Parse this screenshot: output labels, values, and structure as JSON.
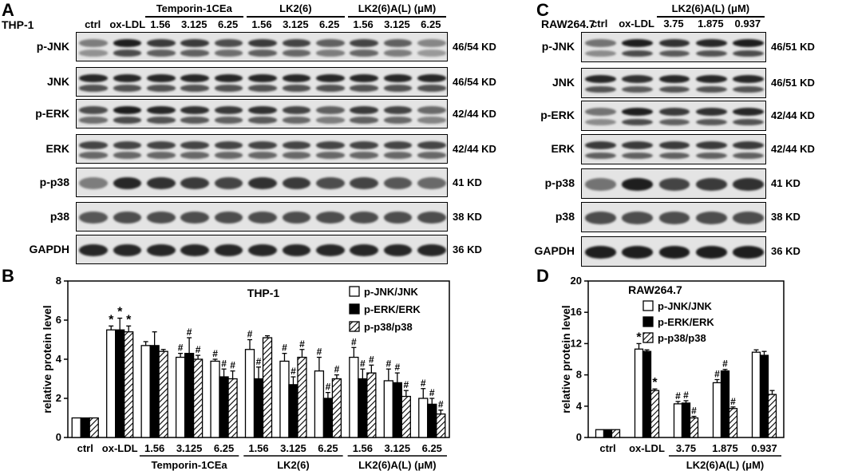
{
  "panels": {
    "A": "A",
    "B": "B",
    "C": "C",
    "D": "D"
  },
  "panelA": {
    "cell_line": "THP-1",
    "lane_headers": [
      "ctrl",
      "ox-LDL",
      "1.56",
      "3.125",
      "6.25",
      "1.56",
      "3.125",
      "6.25",
      "1.56",
      "3.125",
      "6.25"
    ],
    "groups": [
      "Temporin-1CEa",
      "LK2(6)",
      "LK2(6)A(L) (μM)"
    ],
    "rows": [
      {
        "name": "p-JNK",
        "kd": "46/54 KD"
      },
      {
        "name": "JNK",
        "kd": "46/54 KD"
      },
      {
        "name": "p-ERK",
        "kd": "42/44 KD"
      },
      {
        "name": "ERK",
        "kd": "42/44 KD"
      },
      {
        "name": "p-p38",
        "kd": "41 KD"
      },
      {
        "name": "p38",
        "kd": "38 KD"
      },
      {
        "name": "GAPDH",
        "kd": "36 KD"
      }
    ]
  },
  "panelC": {
    "cell_line": "RAW264.7",
    "lane_headers": [
      "ctrl",
      "ox-LDL",
      "3.75",
      "1.875",
      "0.937"
    ],
    "group": "LK2(6)A(L) (μM)",
    "rows": [
      {
        "name": "p-JNK",
        "kd": "46/51 KD"
      },
      {
        "name": "JNK",
        "kd": "46/51 KD"
      },
      {
        "name": "p-ERK",
        "kd": "42/44 KD"
      },
      {
        "name": "ERK",
        "kd": "42/44 KD"
      },
      {
        "name": "p-p38",
        "kd": "41 KD"
      },
      {
        "name": "p38",
        "kd": "38 KD"
      },
      {
        "name": "GAPDH",
        "kd": "36 KD"
      }
    ]
  },
  "chart_data": [
    {
      "type": "bar",
      "title": "THP-1",
      "ylabel": "relative protein level",
      "ylim": [
        0,
        8
      ],
      "yticks": [
        "0",
        "2",
        "4",
        "6",
        "8"
      ],
      "categories": [
        "ctrl",
        "ox-LDL",
        "1.56",
        "3.125",
        "6.25",
        "1.56",
        "3.125",
        "6.25",
        "1.56",
        "3.125",
        "6.25"
      ],
      "groups": [
        {
          "label": "Temporin-1CEa",
          "from": 2,
          "to": 4
        },
        {
          "label": "LK2(6)",
          "from": 5,
          "to": 7
        },
        {
          "label": "LK2(6)A(L) (μM)",
          "from": 8,
          "to": 10
        }
      ],
      "series": [
        {
          "name": "p-JNK/JNK",
          "fill": "white",
          "values": [
            1.0,
            5.5,
            4.7,
            4.1,
            3.9,
            4.5,
            3.9,
            3.4,
            4.1,
            2.9,
            2.0
          ],
          "errors": [
            0,
            0.2,
            0.2,
            0.2,
            0.1,
            0.5,
            0.4,
            0.7,
            0.5,
            0.6,
            0.5
          ],
          "marks": [
            "",
            "*",
            "",
            "#",
            "#",
            "#",
            "#",
            "#",
            "#",
            "#",
            "#"
          ]
        },
        {
          "name": "p-ERK/ERK",
          "fill": "black",
          "values": [
            1.0,
            5.5,
            4.7,
            4.3,
            3.1,
            3.0,
            2.7,
            2.0,
            3.0,
            2.8,
            1.7
          ],
          "errors": [
            0,
            0.6,
            0.7,
            0.8,
            0.4,
            0.6,
            0.4,
            0.3,
            0.5,
            0.5,
            0.3
          ],
          "marks": [
            "",
            "*",
            "",
            "#",
            "#",
            "#",
            "#",
            "#",
            "#",
            "#",
            "#"
          ]
        },
        {
          "name": "p-p38/p38",
          "fill": "hatch",
          "values": [
            1.0,
            5.4,
            4.4,
            4.0,
            3.0,
            5.1,
            4.1,
            3.0,
            3.3,
            2.1,
            1.2
          ],
          "errors": [
            0,
            0.3,
            0.1,
            0.2,
            0.4,
            0.1,
            0.4,
            0.2,
            0.4,
            0.3,
            0.2
          ],
          "marks": [
            "",
            "*",
            "",
            "#",
            "#",
            "",
            "#",
            "#",
            "#",
            "#",
            "#"
          ]
        }
      ]
    },
    {
      "type": "bar",
      "title": "RAW264.7",
      "ylabel": "relative protein level",
      "ylim": [
        0,
        20
      ],
      "yticks": [
        "0",
        "4",
        "8",
        "12",
        "16",
        "20"
      ],
      "categories": [
        "ctrl",
        "ox-LDL",
        "3.75",
        "1.875",
        "0.937"
      ],
      "groups": [
        {
          "label": "LK2(6)A(L) (μM)",
          "from": 2,
          "to": 4
        }
      ],
      "series": [
        {
          "name": "p-JNK/JNK",
          "fill": "white",
          "values": [
            1.0,
            11.3,
            4.3,
            7.0,
            10.9
          ],
          "errors": [
            0,
            0.7,
            0.3,
            0.4,
            0.3
          ],
          "marks": [
            "",
            "*",
            "#",
            "#",
            ""
          ]
        },
        {
          "name": "p-ERK/ERK",
          "fill": "black",
          "values": [
            1.0,
            11.0,
            4.4,
            8.5,
            10.5
          ],
          "errors": [
            0,
            0.2,
            0.3,
            0.2,
            0.5
          ],
          "marks": [
            "",
            "*",
            "#",
            "#",
            ""
          ]
        },
        {
          "name": "p-p38/p38",
          "fill": "hatch",
          "values": [
            1.0,
            6.0,
            2.5,
            3.7,
            5.5
          ],
          "errors": [
            0,
            0.2,
            0.2,
            0.2,
            0.5
          ],
          "marks": [
            "",
            "*",
            "#",
            "#",
            ""
          ]
        }
      ]
    }
  ]
}
